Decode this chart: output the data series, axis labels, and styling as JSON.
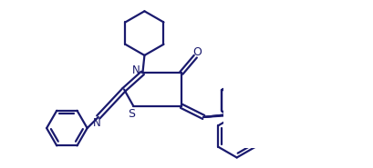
{
  "line_color": "#1a1a6e",
  "bg_color": "#ffffff",
  "line_width": 1.6,
  "figsize": [
    4.1,
    1.85
  ],
  "dpi": 100,
  "xlim": [
    0,
    10
  ],
  "ylim": [
    0,
    4.5
  ]
}
